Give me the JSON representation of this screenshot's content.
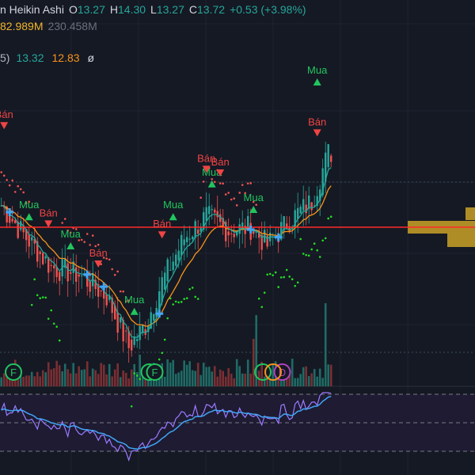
{
  "header": {
    "title": "n Heikin Ashi",
    "open_label": "O",
    "open": "13.27",
    "high_label": "H",
    "high": "14.30",
    "low_label": "L",
    "low": "13.27",
    "close_label": "C",
    "close": "13.72",
    "change": "+0.53 (+3.98%)",
    "volume_1": "82.989M",
    "volume_2": "230.458M"
  },
  "indicator_line": {
    "prefix": "5)",
    "value_1": "13.32",
    "value_2": "12.83",
    "symbol": "ø"
  },
  "colors": {
    "background": "#151924",
    "up": "#26a69a",
    "down": "#ef5350",
    "signal_buy": "#22c55e",
    "signal_sell": "#ef4444",
    "ema_fast": "#26a69a",
    "ema_slow": "#f7931a",
    "sar": "#22e022",
    "hline": "#ff2a2a",
    "rsi": "#9c7bff",
    "rsi_ma": "#42a5f5",
    "volume_profile": "#c9a227"
  },
  "chart_data": {
    "type": "candlestick",
    "style": "Heikin Ashi",
    "ohlc_last": {
      "open": 13.27,
      "high": 14.3,
      "low": 13.27,
      "close": 13.72,
      "change": 0.53,
      "change_pct": 3.98
    },
    "signals": [
      {
        "label": "Bán",
        "type": "sell",
        "x": 1,
        "y": 14.1
      },
      {
        "label": "Mua",
        "type": "buy",
        "x": 10,
        "y": 12.85
      },
      {
        "label": "Bán",
        "type": "sell",
        "x": 17,
        "y": 12.75
      },
      {
        "label": "Mua",
        "type": "buy",
        "x": 25,
        "y": 12.45
      },
      {
        "label": "Bán",
        "type": "sell",
        "x": 35,
        "y": 12.2
      },
      {
        "label": "Mua",
        "type": "buy",
        "x": 48,
        "y": 11.55
      },
      {
        "label": "Bán",
        "type": "sell",
        "x": 58,
        "y": 12.6
      },
      {
        "label": "Mua",
        "type": "buy",
        "x": 62,
        "y": 12.85
      },
      {
        "label": "Mua",
        "type": "buy",
        "x": 76,
        "y": 13.3
      },
      {
        "label": "Bán",
        "type": "sell",
        "x": 74,
        "y": 13.5
      },
      {
        "label": "Bán",
        "type": "sell",
        "x": 79,
        "y": 13.45
      },
      {
        "label": "Mua",
        "type": "buy",
        "x": 91,
        "y": 12.95
      },
      {
        "label": "Bán",
        "type": "sell",
        "x": 114,
        "y": 14.0
      },
      {
        "label": "Mua",
        "type": "buy",
        "x": 114,
        "y": 14.7
      }
    ],
    "event_markers": [
      {
        "label": "F",
        "x": 2
      },
      {
        "label": "F",
        "x": 51
      },
      {
        "label": "F",
        "x": 53
      },
      {
        "label": "D",
        "x": 99
      }
    ],
    "hline_price": 12.7
  }
}
